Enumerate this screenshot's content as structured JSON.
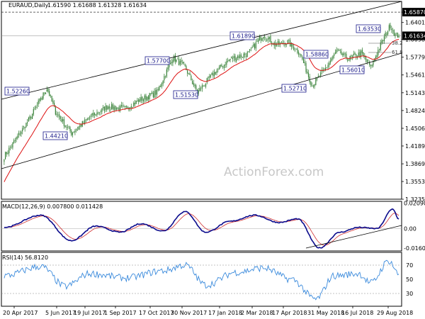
{
  "chart_data": {
    "type": "candlestick",
    "price_panel": {
      "symbol": "EURAUD,Daily",
      "ohlc_header": "1.61590 1.61688 1.61328 1.61634",
      "y_ticks": [
        "1.65870",
        "1.64015",
        "1.60980",
        "1.57795",
        "1.54615",
        "1.51430",
        "1.48245",
        "1.45060",
        "1.41890",
        "1.38695",
        "1.35530",
        "1.32355"
      ],
      "ylim": [
        1.3236,
        1.6779
      ],
      "last_price": "1.61634",
      "level_line": "1.65870",
      "annotations": [
        "1.52260",
        "1.44210",
        "1.57700",
        "1.51530",
        "1.61890",
        "1.52710",
        "1.58860",
        "1.56010",
        "1.63530"
      ],
      "fib_labels": [
        "38.2",
        "61.8"
      ],
      "anchors": [
        {
          "d": 0,
          "p": 1.4
        },
        {
          "d": 20,
          "p": 1.465
        },
        {
          "d": 35,
          "p": 1.5226
        },
        {
          "d": 42,
          "p": 1.48
        },
        {
          "d": 55,
          "p": 1.4421
        },
        {
          "d": 70,
          "p": 1.47
        },
        {
          "d": 85,
          "p": 1.49
        },
        {
          "d": 98,
          "p": 1.485
        },
        {
          "d": 110,
          "p": 1.5
        },
        {
          "d": 125,
          "p": 1.515
        },
        {
          "d": 138,
          "p": 1.577
        },
        {
          "d": 148,
          "p": 1.56
        },
        {
          "d": 158,
          "p": 1.5153
        },
        {
          "d": 172,
          "p": 1.55
        },
        {
          "d": 185,
          "p": 1.575
        },
        {
          "d": 200,
          "p": 1.585
        },
        {
          "d": 212,
          "p": 1.6189
        },
        {
          "d": 222,
          "p": 1.6
        },
        {
          "d": 232,
          "p": 1.605
        },
        {
          "d": 242,
          "p": 1.585
        },
        {
          "d": 252,
          "p": 1.5271
        },
        {
          "d": 262,
          "p": 1.555
        },
        {
          "d": 272,
          "p": 1.5886
        },
        {
          "d": 282,
          "p": 1.575
        },
        {
          "d": 292,
          "p": 1.585
        },
        {
          "d": 300,
          "p": 1.5601
        },
        {
          "d": 308,
          "p": 1.6
        },
        {
          "d": 316,
          "p": 1.6353
        },
        {
          "d": 320,
          "p": 1.618
        },
        {
          "d": 323,
          "p": 1.6163
        }
      ]
    },
    "macd_panel": {
      "label": "MACD(12,26,9) 0.007800 0.011428",
      "y_ticks": [
        "0.020904",
        "0.00",
        "-0.016023"
      ],
      "ylim": [
        -0.0185,
        0.0225
      ]
    },
    "rsi_panel": {
      "label": "RSI(14) 56.8120",
      "y_ticks": [
        "70",
        "50",
        "30"
      ],
      "ylim": [
        12,
        88
      ]
    },
    "x_ticks": [
      "20 Apr 2017",
      "5 Jun 2017",
      "19 Jul 2017",
      "1 Sep 2017",
      "17 Oct 2017",
      "30 Nov 2017",
      "17 Jan 2018",
      "2 Mar 2018",
      "17 Apr 2018",
      "31 May 2018",
      "16 Jul 2018",
      "29 Aug 2018"
    ],
    "watermark": "ActionForex.com",
    "colors": {
      "candle": "#2c7a2c",
      "ema": "#dd1111",
      "channel": "#000000",
      "macd": "#0a0a8c",
      "signal": "#d03030",
      "rsi": "#3a8adc",
      "label_border": "#1a1a8a"
    }
  }
}
